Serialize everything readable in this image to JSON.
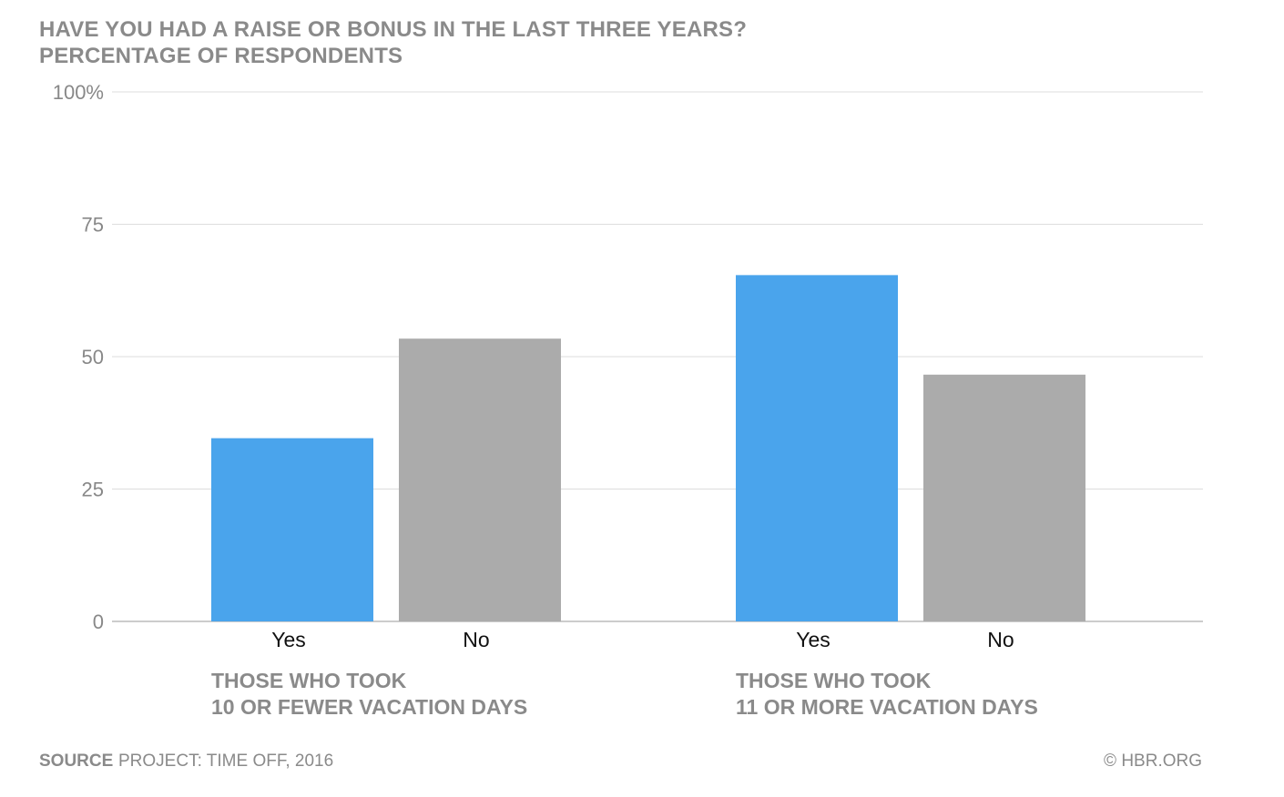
{
  "header": {
    "title": "HAVE YOU HAD A RAISE OR BONUS IN THE LAST THREE YEARS?",
    "subtitle": "PERCENTAGE OF RESPONDENTS"
  },
  "footer": {
    "source_label": "SOURCE",
    "source_text": "PROJECT: TIME OFF, 2016",
    "copyright": "© HBR.ORG"
  },
  "colors": {
    "yes": "#4aa4ec",
    "no": "#ababab",
    "grid": "#dddddd",
    "axis": "#bbbbbb",
    "tick_text": "#888888",
    "bar_label": "#111111",
    "group_label": "#8a8a8a"
  },
  "chart_data": {
    "type": "bar",
    "title": "HAVE YOU HAD A RAISE OR BONUS IN THE LAST THREE YEARS?",
    "subtitle": "PERCENTAGE OF RESPONDENTS",
    "ylim": [
      0,
      100
    ],
    "yticks": [
      {
        "value": 0,
        "label": "0"
      },
      {
        "value": 25,
        "label": "25"
      },
      {
        "value": 50,
        "label": "50"
      },
      {
        "value": 75,
        "label": "75"
      },
      {
        "value": 100,
        "label": "100%"
      }
    ],
    "grid": true,
    "groups": [
      {
        "label_lines": [
          "THOSE WHO TOOK",
          "10 OR FEWER VACATION DAYS"
        ],
        "bars": [
          {
            "category": "Yes",
            "value": 34.6
          },
          {
            "category": "No",
            "value": 53.4
          }
        ]
      },
      {
        "label_lines": [
          "THOSE WHO TOOK",
          "11 OR MORE VACATION DAYS"
        ],
        "bars": [
          {
            "category": "Yes",
            "value": 65.4
          },
          {
            "category": "No",
            "value": 46.6
          }
        ]
      }
    ]
  }
}
